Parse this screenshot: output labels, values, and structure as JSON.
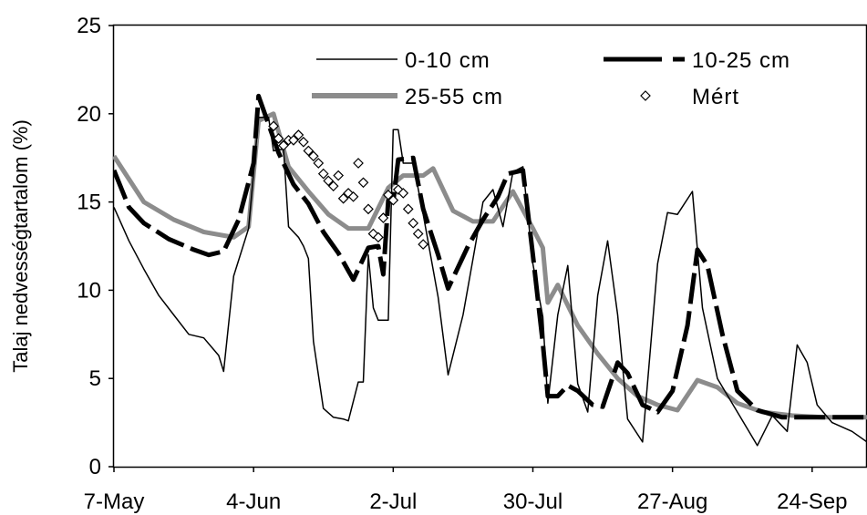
{
  "chart_data": {
    "type": "line",
    "title": "",
    "xlabel": "",
    "ylabel": "Talaj nedvességtartalom (%)",
    "ylim": [
      0,
      25
    ],
    "xlim": [
      "2004-05-07",
      "2004-10-05"
    ],
    "x_tick_labels": [
      {
        "label": "7-May",
        "date": "2004-05-07"
      },
      {
        "label": "4-Jun",
        "date": "2004-06-04"
      },
      {
        "label": "2-Jul",
        "date": "2004-07-02"
      },
      {
        "label": "30-Jul",
        "date": "2004-07-30"
      },
      {
        "label": "27-Aug",
        "date": "2004-08-27"
      },
      {
        "label": "24-Sep",
        "date": "2004-09-24"
      }
    ],
    "y_ticks": [
      0,
      5,
      10,
      15,
      20,
      25
    ],
    "legend_position": "top-right",
    "series": [
      {
        "name": "0-10 cm",
        "style": "thin-solid",
        "color": "#000000",
        "points": [
          [
            "2004-05-07",
            14.7
          ],
          [
            "2004-05-10",
            12.8
          ],
          [
            "2004-05-13",
            11.2
          ],
          [
            "2004-05-16",
            9.7
          ],
          [
            "2004-05-19",
            8.6
          ],
          [
            "2004-05-22",
            7.5
          ],
          [
            "2004-05-25",
            7.3
          ],
          [
            "2004-05-28",
            6.3
          ],
          [
            "2004-05-29",
            5.4
          ],
          [
            "2004-05-31",
            10.8
          ],
          [
            "2004-06-03",
            13.5
          ],
          [
            "2004-06-05",
            19.8
          ],
          [
            "2004-06-07",
            19.8
          ],
          [
            "2004-06-08",
            17.9
          ],
          [
            "2004-06-10",
            18.0
          ],
          [
            "2004-06-11",
            13.6
          ],
          [
            "2004-06-13",
            13.0
          ],
          [
            "2004-06-14",
            12.5
          ],
          [
            "2004-06-15",
            11.8
          ],
          [
            "2004-06-16",
            7.1
          ],
          [
            "2004-06-18",
            3.3
          ],
          [
            "2004-06-20",
            2.8
          ],
          [
            "2004-06-22",
            2.7
          ],
          [
            "2004-06-23",
            2.6
          ],
          [
            "2004-06-25",
            4.8
          ],
          [
            "2004-06-26",
            4.8
          ],
          [
            "2004-06-27",
            12.0
          ],
          [
            "2004-06-28",
            9.0
          ],
          [
            "2004-06-29",
            8.3
          ],
          [
            "2004-07-01",
            8.3
          ],
          [
            "2004-07-02",
            19.1
          ],
          [
            "2004-07-03",
            19.1
          ],
          [
            "2004-07-04",
            17.2
          ],
          [
            "2004-07-06",
            17.2
          ],
          [
            "2004-07-08",
            14.3
          ],
          [
            "2004-07-11",
            9.6
          ],
          [
            "2004-07-13",
            5.2
          ],
          [
            "2004-07-16",
            8.6
          ],
          [
            "2004-07-18",
            11.8
          ],
          [
            "2004-07-20",
            15.0
          ],
          [
            "2004-07-22",
            15.7
          ],
          [
            "2004-07-24",
            13.6
          ],
          [
            "2004-07-26",
            16.7
          ],
          [
            "2004-07-28",
            17.0
          ],
          [
            "2004-07-30",
            11.5
          ],
          [
            "2004-08-01",
            8.5
          ],
          [
            "2004-08-02",
            3.6
          ],
          [
            "2004-08-04",
            8.6
          ],
          [
            "2004-08-06",
            11.4
          ],
          [
            "2004-08-08",
            4.7
          ],
          [
            "2004-08-10",
            3.1
          ],
          [
            "2004-08-12",
            9.7
          ],
          [
            "2004-08-14",
            12.8
          ],
          [
            "2004-08-16",
            8.6
          ],
          [
            "2004-08-18",
            2.7
          ],
          [
            "2004-08-21",
            1.4
          ],
          [
            "2004-08-24",
            11.5
          ],
          [
            "2004-08-26",
            14.4
          ],
          [
            "2004-08-28",
            14.3
          ],
          [
            "2004-08-31",
            15.6
          ],
          [
            "2004-09-02",
            9.0
          ],
          [
            "2004-09-05",
            5.0
          ],
          [
            "2004-09-09",
            3.1
          ],
          [
            "2004-09-13",
            1.2
          ],
          [
            "2004-09-16",
            2.9
          ],
          [
            "2004-09-19",
            2.0
          ],
          [
            "2004-09-21",
            6.9
          ],
          [
            "2004-09-23",
            5.9
          ],
          [
            "2004-09-25",
            3.5
          ],
          [
            "2004-09-28",
            2.5
          ],
          [
            "2004-10-02",
            2.0
          ],
          [
            "2004-10-05",
            1.4
          ]
        ]
      },
      {
        "name": "10-25 cm",
        "style": "thick-dashed",
        "color": "#000000",
        "points": [
          [
            "2004-05-07",
            16.8
          ],
          [
            "2004-05-10",
            14.7
          ],
          [
            "2004-05-13",
            13.8
          ],
          [
            "2004-05-18",
            12.9
          ],
          [
            "2004-05-23",
            12.3
          ],
          [
            "2004-05-26",
            12.0
          ],
          [
            "2004-05-29",
            12.2
          ],
          [
            "2004-06-01",
            14.0
          ],
          [
            "2004-06-04",
            17.2
          ],
          [
            "2004-06-05",
            21.0
          ],
          [
            "2004-06-07",
            19.4
          ],
          [
            "2004-06-09",
            17.8
          ],
          [
            "2004-06-12",
            16.0
          ],
          [
            "2004-06-15",
            14.9
          ],
          [
            "2004-06-18",
            13.3
          ],
          [
            "2004-06-21",
            12.1
          ],
          [
            "2004-06-24",
            10.6
          ],
          [
            "2004-06-27",
            12.4
          ],
          [
            "2004-06-29",
            12.5
          ],
          [
            "2004-06-30",
            10.9
          ],
          [
            "2004-07-01",
            15.1
          ],
          [
            "2004-07-02",
            15.0
          ],
          [
            "2004-07-03",
            17.4
          ],
          [
            "2004-07-06",
            17.5
          ],
          [
            "2004-07-08",
            14.6
          ],
          [
            "2004-07-11",
            12.0
          ],
          [
            "2004-07-13",
            10.1
          ],
          [
            "2004-07-17",
            12.5
          ],
          [
            "2004-07-20",
            14.0
          ],
          [
            "2004-07-23",
            15.3
          ],
          [
            "2004-07-25",
            16.6
          ],
          [
            "2004-07-28",
            16.8
          ],
          [
            "2004-07-30",
            12.0
          ],
          [
            "2004-08-01",
            7.0
          ],
          [
            "2004-08-02",
            4.0
          ],
          [
            "2004-08-04",
            4.0
          ],
          [
            "2004-08-06",
            4.6
          ],
          [
            "2004-08-08",
            4.3
          ],
          [
            "2004-08-11",
            3.5
          ],
          [
            "2004-08-13",
            3.4
          ],
          [
            "2004-08-16",
            5.9
          ],
          [
            "2004-08-18",
            5.3
          ],
          [
            "2004-08-21",
            3.5
          ],
          [
            "2004-08-24",
            3.1
          ],
          [
            "2004-08-27",
            4.3
          ],
          [
            "2004-08-30",
            8.0
          ],
          [
            "2004-09-01",
            12.3
          ],
          [
            "2004-09-03",
            11.4
          ],
          [
            "2004-09-06",
            7.5
          ],
          [
            "2004-09-09",
            4.3
          ],
          [
            "2004-09-13",
            3.2
          ],
          [
            "2004-09-18",
            2.8
          ],
          [
            "2004-09-25",
            2.8
          ],
          [
            "2004-10-05",
            2.8
          ]
        ]
      },
      {
        "name": "25-55 cm",
        "style": "thick-solid-gray",
        "color": "#8c8c8c",
        "points": [
          [
            "2004-05-07",
            17.6
          ],
          [
            "2004-05-13",
            15.0
          ],
          [
            "2004-05-19",
            14.0
          ],
          [
            "2004-05-25",
            13.3
          ],
          [
            "2004-05-31",
            13.0
          ],
          [
            "2004-06-03",
            13.6
          ],
          [
            "2004-06-05",
            19.6
          ],
          [
            "2004-06-08",
            20.0
          ],
          [
            "2004-06-11",
            17.0
          ],
          [
            "2004-06-15",
            15.6
          ],
          [
            "2004-06-19",
            14.3
          ],
          [
            "2004-06-23",
            13.5
          ],
          [
            "2004-06-27",
            13.5
          ],
          [
            "2004-07-01",
            15.8
          ],
          [
            "2004-07-04",
            16.5
          ],
          [
            "2004-07-08",
            16.5
          ],
          [
            "2004-07-10",
            16.9
          ],
          [
            "2004-07-14",
            14.5
          ],
          [
            "2004-07-18",
            13.9
          ],
          [
            "2004-07-22",
            13.9
          ],
          [
            "2004-07-26",
            15.6
          ],
          [
            "2004-07-30",
            13.5
          ],
          [
            "2004-08-01",
            12.4
          ],
          [
            "2004-08-02",
            9.3
          ],
          [
            "2004-08-04",
            10.3
          ],
          [
            "2004-08-08",
            8.0
          ],
          [
            "2004-08-12",
            6.4
          ],
          [
            "2004-08-16",
            5.0
          ],
          [
            "2004-08-20",
            4.0
          ],
          [
            "2004-08-24",
            3.5
          ],
          [
            "2004-08-28",
            3.2
          ],
          [
            "2004-09-01",
            4.9
          ],
          [
            "2004-09-05",
            4.5
          ],
          [
            "2004-09-09",
            3.6
          ],
          [
            "2004-09-14",
            3.1
          ],
          [
            "2004-09-20",
            2.9
          ],
          [
            "2004-09-26",
            2.8
          ],
          [
            "2004-10-05",
            2.8
          ]
        ]
      },
      {
        "name": "Mért",
        "style": "diamond-markers",
        "color": "#000000",
        "points": [
          [
            "2004-06-08",
            19.3
          ],
          [
            "2004-06-09",
            18.6
          ],
          [
            "2004-06-10",
            18.2
          ],
          [
            "2004-06-11",
            18.5
          ],
          [
            "2004-06-12",
            18.5
          ],
          [
            "2004-06-13",
            18.8
          ],
          [
            "2004-06-14",
            18.4
          ],
          [
            "2004-06-15",
            17.9
          ],
          [
            "2004-06-16",
            17.6
          ],
          [
            "2004-06-17",
            17.2
          ],
          [
            "2004-06-18",
            16.6
          ],
          [
            "2004-06-19",
            16.2
          ],
          [
            "2004-06-20",
            15.9
          ],
          [
            "2004-06-21",
            16.5
          ],
          [
            "2004-06-22",
            15.2
          ],
          [
            "2004-06-23",
            15.5
          ],
          [
            "2004-06-24",
            15.3
          ],
          [
            "2004-06-25",
            17.2
          ],
          [
            "2004-06-26",
            16.1
          ],
          [
            "2004-06-27",
            14.6
          ],
          [
            "2004-06-28",
            13.2
          ],
          [
            "2004-06-29",
            13.0
          ],
          [
            "2004-06-30",
            14.1
          ],
          [
            "2004-07-01",
            15.4
          ],
          [
            "2004-07-02",
            15.1
          ],
          [
            "2004-07-03",
            15.7
          ],
          [
            "2004-07-04",
            15.5
          ],
          [
            "2004-07-05",
            14.6
          ],
          [
            "2004-07-06",
            13.8
          ],
          [
            "2004-07-07",
            13.2
          ],
          [
            "2004-07-08",
            12.6
          ]
        ]
      }
    ]
  }
}
